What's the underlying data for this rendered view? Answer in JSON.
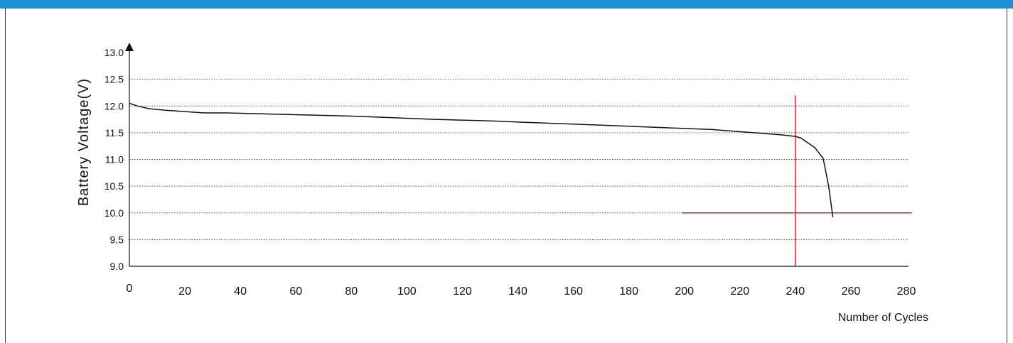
{
  "colors": {
    "top_bar": "#1a93d6",
    "curve": "#111111",
    "marker": "#d9232a",
    "grid": "#555555"
  },
  "chart_data": {
    "type": "line",
    "xlabel": "Number of Cycles",
    "ylabel": "Battery Voltage(V)",
    "xlim": [
      0,
      280
    ],
    "ylim": [
      9.0,
      13.0
    ],
    "x_ticks": [
      0,
      20,
      40,
      60,
      80,
      100,
      120,
      140,
      160,
      180,
      200,
      220,
      240,
      260,
      280
    ],
    "y_ticks": [
      9.0,
      9.5,
      10.0,
      10.5,
      11.0,
      11.5,
      12.0,
      12.5,
      13.0
    ],
    "grid": "horizontal dotted",
    "series": [
      {
        "x": [
          0,
          3,
          7,
          13,
          27,
          35,
          50,
          65,
          80,
          95,
          110,
          130,
          145,
          160,
          180,
          200,
          210,
          225,
          235,
          240,
          242,
          244,
          247,
          250,
          252,
          253.5
        ],
        "y": [
          12.05,
          12.0,
          11.95,
          11.92,
          11.87,
          11.87,
          11.85,
          11.83,
          11.81,
          11.78,
          11.75,
          11.72,
          11.69,
          11.66,
          11.62,
          11.58,
          11.56,
          11.5,
          11.46,
          11.43,
          11.4,
          11.33,
          11.22,
          11.02,
          10.5,
          9.92
        ]
      }
    ],
    "annotations": {
      "vertical_marker_x": 240,
      "vertical_marker_y_range": [
        9.0,
        12.2
      ],
      "horizontal_marker_y": 10.0,
      "horizontal_marker_x_range": [
        199,
        282
      ]
    }
  }
}
